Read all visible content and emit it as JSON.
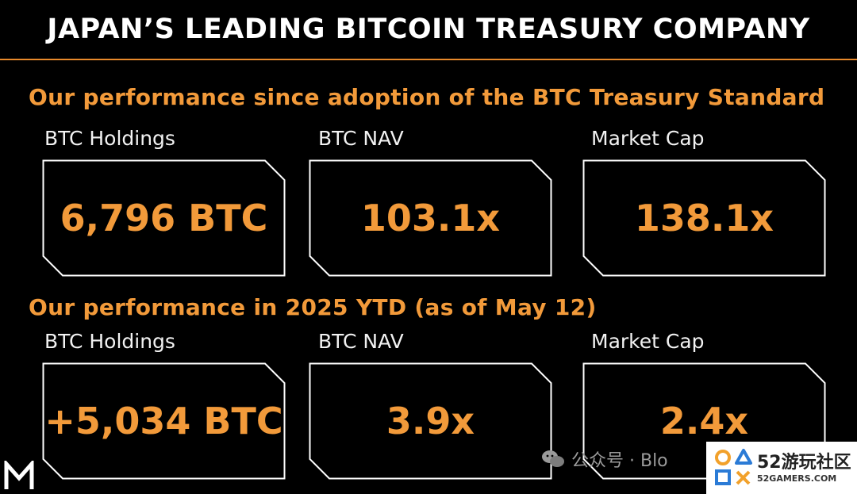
{
  "header": {
    "title": "JAPAN’S LEADING BITCOIN TREASURY COMPANY"
  },
  "sections": [
    {
      "title": "Our performance since adoption of the BTC Treasury Standard",
      "metrics": [
        {
          "label": "BTC Holdings",
          "value": "6,796 BTC"
        },
        {
          "label": "BTC NAV",
          "value": "103.1x"
        },
        {
          "label": "Market Cap",
          "value": "138.1x"
        }
      ]
    },
    {
      "title": "Our performance in 2025 YTD (as of May 12)",
      "metrics": [
        {
          "label": "BTC Holdings",
          "value": "+5,034 BTC"
        },
        {
          "label": "BTC NAV",
          "value": "3.9x"
        },
        {
          "label": "Market Cap",
          "value": "2.4x"
        }
      ]
    }
  ],
  "watermark": {
    "channel_text": "公众号 · Blo",
    "brand_main": "52游玩社区",
    "brand_sub": "52GAMERS.COM"
  },
  "colors": {
    "accent": "#f29a3a",
    "background": "#000000",
    "text": "#ffffff"
  },
  "icons": {
    "corner_logo": "m-logo-icon",
    "chat": "wechat-icon",
    "brand": "gamepad-symbols-icon"
  }
}
